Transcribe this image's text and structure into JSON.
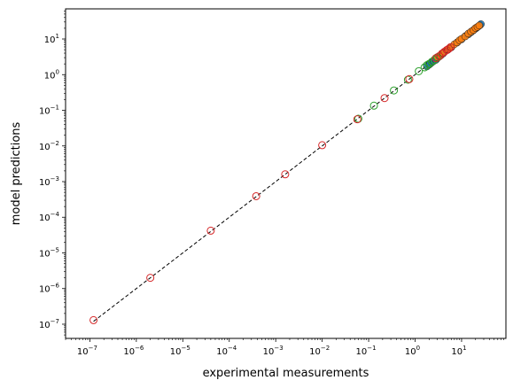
{
  "chart_data": {
    "type": "scatter",
    "title": "",
    "xlabel": "experimental measurements",
    "ylabel": "model predictions",
    "x_scale": "log",
    "y_scale": "log",
    "xlim": [
      3e-08,
      90
    ],
    "ylim": [
      4e-08,
      70
    ],
    "grid": false,
    "legend": "none",
    "x_ticks": [
      {
        "mantissa": "10",
        "exp": "−7",
        "value": 1e-07
      },
      {
        "mantissa": "10",
        "exp": "−6",
        "value": 1e-06
      },
      {
        "mantissa": "10",
        "exp": "−5",
        "value": 1e-05
      },
      {
        "mantissa": "10",
        "exp": "−4",
        "value": 0.0001
      },
      {
        "mantissa": "10",
        "exp": "−3",
        "value": 0.001
      },
      {
        "mantissa": "10",
        "exp": "−2",
        "value": 0.01
      },
      {
        "mantissa": "10",
        "exp": "−1",
        "value": 0.1
      },
      {
        "mantissa": "10",
        "exp": "0",
        "value": 1
      },
      {
        "mantissa": "10",
        "exp": "1",
        "value": 10
      }
    ],
    "y_ticks": [
      {
        "mantissa": "10",
        "exp": "−7",
        "value": 1e-07
      },
      {
        "mantissa": "10",
        "exp": "−6",
        "value": 1e-06
      },
      {
        "mantissa": "10",
        "exp": "−5",
        "value": 1e-05
      },
      {
        "mantissa": "10",
        "exp": "−4",
        "value": 0.0001
      },
      {
        "mantissa": "10",
        "exp": "−3",
        "value": 0.001
      },
      {
        "mantissa": "10",
        "exp": "−2",
        "value": 0.01
      },
      {
        "mantissa": "10",
        "exp": "−1",
        "value": 0.1
      },
      {
        "mantissa": "10",
        "exp": "0",
        "value": 1
      },
      {
        "mantissa": "10",
        "exp": "1",
        "value": 10
      }
    ],
    "reference_line": {
      "style": "dashed",
      "color": "#000000",
      "from": 1.2e-07,
      "to": 25
    },
    "series": [
      {
        "color": "#1f77b4",
        "marker": "filled-circle",
        "x": [
          1.8,
          2.0,
          2.1,
          2.3,
          2.5,
          2.8,
          3.0,
          3.3,
          3.6,
          4.0,
          5.0,
          6.0,
          8.0,
          10.0,
          12.0,
          14.0,
          16.0,
          18.0,
          20.0,
          22.0,
          24.0,
          25.0,
          26.0
        ],
        "y": [
          1.7,
          1.9,
          2.0,
          2.2,
          2.4,
          2.6,
          2.9,
          3.2,
          3.5,
          3.9,
          4.9,
          5.8,
          7.9,
          9.8,
          12.0,
          13.5,
          15.5,
          17.5,
          19.5,
          21.5,
          23.5,
          24.5,
          26.0
        ]
      },
      {
        "color": "#ff7f0e",
        "marker": "filled-circle",
        "x": [
          3.0,
          3.5,
          4.0,
          5.0,
          6.0,
          7.0,
          8.0,
          9.0,
          10.0,
          12.0,
          14.0,
          16.0,
          18.0,
          20.0,
          22.0,
          24.0
        ],
        "y": [
          3.1,
          3.4,
          4.1,
          5.1,
          5.9,
          7.1,
          8.0,
          9.2,
          10.1,
          11.8,
          14.2,
          16.1,
          17.8,
          20.3,
          21.8,
          23.8
        ]
      },
      {
        "color": "#2ca02c",
        "marker": "open-circle",
        "x": [
          0.06,
          0.13,
          0.35,
          0.7,
          1.2,
          1.6,
          1.8,
          2.0,
          2.3,
          2.6,
          3.0
        ],
        "y": [
          0.058,
          0.135,
          0.36,
          0.72,
          1.25,
          1.6,
          1.85,
          2.0,
          2.3,
          2.6,
          3.0
        ]
      },
      {
        "color": "#d62728",
        "marker": "open-circle",
        "x": [
          1.2e-07,
          2e-06,
          4e-05,
          0.00038,
          0.0016,
          0.01,
          0.057,
          0.22,
          0.75,
          2.8,
          3.3,
          3.8,
          4.3,
          4.8,
          5.3,
          5.8
        ],
        "y": [
          1.3e-07,
          2e-06,
          4.2e-05,
          0.00039,
          0.0016,
          0.0105,
          0.056,
          0.22,
          0.75,
          2.9,
          3.3,
          3.9,
          4.4,
          4.9,
          5.3,
          5.9
        ]
      }
    ]
  }
}
